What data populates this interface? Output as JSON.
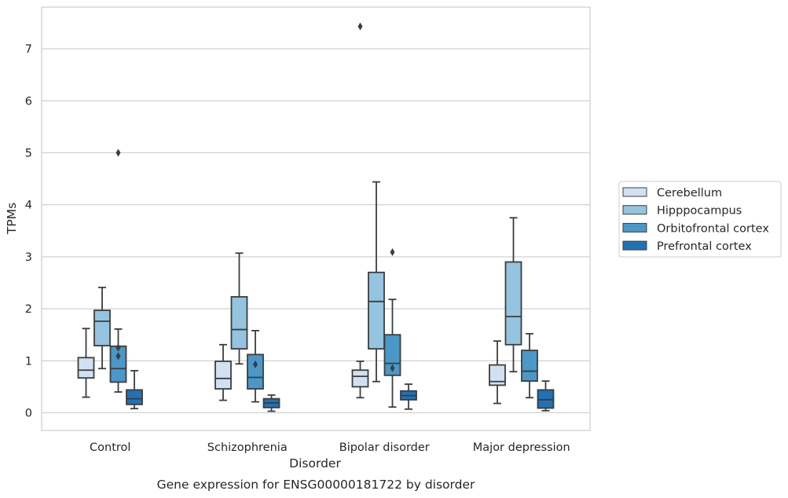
{
  "chart_data": {
    "type": "box",
    "title": "",
    "caption": "Gene expression for ENSG00000181722 by disorder",
    "xlabel": "Disorder",
    "ylabel": "TPMs",
    "ylim": [
      -0.33,
      7.8
    ],
    "yticks": [
      0,
      1,
      2,
      3,
      4,
      5,
      6,
      7
    ],
    "grid": "horizontal",
    "legend_position": "right",
    "categories": [
      "Control",
      "Schizophrenia",
      "Bipolar disorder",
      "Major depression"
    ],
    "series": [
      {
        "name": "Cerebellum",
        "color": "#d0e1f2",
        "boxes": [
          {
            "whislo": 0.3,
            "q1": 0.67,
            "med": 0.82,
            "q3": 1.06,
            "whishi": 1.62,
            "fliers": []
          },
          {
            "whislo": 0.24,
            "q1": 0.46,
            "med": 0.66,
            "q3": 0.99,
            "whishi": 1.31,
            "fliers": []
          },
          {
            "whislo": 0.29,
            "q1": 0.5,
            "med": 0.7,
            "q3": 0.82,
            "whishi": 0.99,
            "fliers": [
              7.43
            ]
          },
          {
            "whislo": 0.18,
            "q1": 0.53,
            "med": 0.6,
            "q3": 0.92,
            "whishi": 1.38,
            "fliers": []
          }
        ]
      },
      {
        "name": "Hipppocampus",
        "color": "#94c4df",
        "boxes": [
          {
            "whislo": 0.85,
            "q1": 1.29,
            "med": 1.76,
            "q3": 1.97,
            "whishi": 2.41,
            "fliers": []
          },
          {
            "whislo": 0.94,
            "q1": 1.23,
            "med": 1.6,
            "q3": 2.23,
            "whishi": 3.07,
            "fliers": []
          },
          {
            "whislo": 0.6,
            "q1": 1.23,
            "med": 2.14,
            "q3": 2.7,
            "whishi": 4.44,
            "fliers": []
          },
          {
            "whislo": 0.79,
            "q1": 1.31,
            "med": 1.85,
            "q3": 2.9,
            "whishi": 3.75,
            "fliers": []
          }
        ]
      },
      {
        "name": "Orbitofrontal cortex",
        "color": "#4a98c9",
        "boxes": [
          {
            "whislo": 0.4,
            "q1": 0.59,
            "med": 0.85,
            "q3": 1.28,
            "whishi": 1.61,
            "fliers": [
              5.0,
              1.25,
              1.09
            ]
          },
          {
            "whislo": 0.21,
            "q1": 0.46,
            "med": 0.68,
            "q3": 1.12,
            "whishi": 1.58,
            "fliers": [
              0.93
            ]
          },
          {
            "whislo": 0.11,
            "q1": 0.72,
            "med": 0.95,
            "q3": 1.5,
            "whishi": 2.18,
            "fliers": [
              3.09,
              0.86
            ]
          },
          {
            "whislo": 0.29,
            "q1": 0.61,
            "med": 0.8,
            "q3": 1.2,
            "whishi": 1.52,
            "fliers": []
          }
        ]
      },
      {
        "name": "Prefrontal cortex",
        "color": "#2171b5",
        "boxes": [
          {
            "whislo": 0.08,
            "q1": 0.16,
            "med": 0.27,
            "q3": 0.44,
            "whishi": 0.81,
            "fliers": []
          },
          {
            "whislo": 0.03,
            "q1": 0.1,
            "med": 0.19,
            "q3": 0.27,
            "whishi": 0.34,
            "fliers": []
          },
          {
            "whislo": 0.07,
            "q1": 0.25,
            "med": 0.33,
            "q3": 0.42,
            "whishi": 0.55,
            "fliers": []
          },
          {
            "whislo": 0.04,
            "q1": 0.09,
            "med": 0.25,
            "q3": 0.44,
            "whishi": 0.61,
            "fliers": []
          }
        ]
      }
    ]
  }
}
